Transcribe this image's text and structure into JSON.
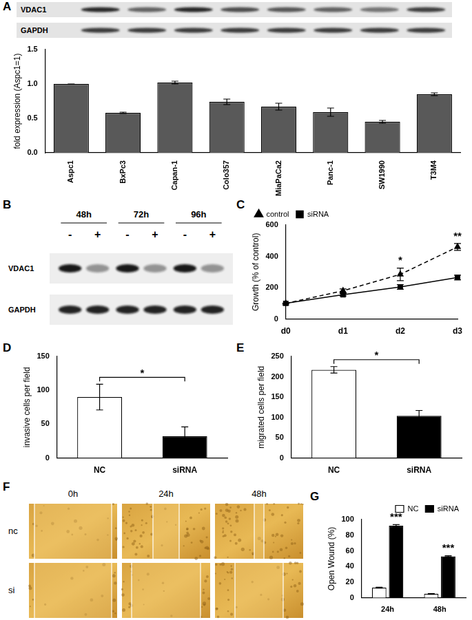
{
  "figure": {
    "panel_labels": [
      "A",
      "B",
      "C",
      "D",
      "E",
      "F",
      "G"
    ],
    "blot_A": {
      "rows": [
        "VDAC1",
        "GAPDH"
      ]
    },
    "blot_B": {
      "timepoints": [
        "48h",
        "72h",
        "96h"
      ],
      "treatment": [
        "-",
        "+"
      ],
      "rows": [
        "VDAC1",
        "GAPDH"
      ]
    },
    "wound_F": {
      "timepoints": [
        "0h",
        "24h",
        "48h"
      ],
      "groups": [
        "nc",
        "si"
      ]
    }
  },
  "chart_data": [
    {
      "type": "bar",
      "y_label": "fold expression (Aspc1=1)",
      "categories": [
        "Aspc1",
        "BxPc3",
        "Capan-1",
        "Colo357",
        "MiaPaCa2",
        "Panc-1",
        "SW1990",
        "T3M4"
      ],
      "values": [
        1.0,
        0.58,
        1.02,
        0.74,
        0.67,
        0.59,
        0.45,
        0.85
      ],
      "errors": [
        0,
        0.01,
        0.02,
        0.04,
        0.05,
        0.06,
        0.02,
        0.02
      ],
      "color": "#595959",
      "ylim": [
        0,
        1.5
      ],
      "yticks": [
        {
          "value": 0,
          "label": "0.0"
        },
        {
          "value": 0.5,
          "label": "0.5"
        },
        {
          "value": 1,
          "label": "1.0"
        },
        {
          "value": 1.5,
          "label": "1.5"
        }
      ],
      "grid": false
    },
    {
      "type": "line",
      "y_label": "Growth (% of control)",
      "categories": [
        "d0",
        "d1",
        "d2",
        "d3"
      ],
      "series": [
        {
          "name": "control",
          "color": "#000000",
          "marker": "triangle",
          "line_style": "dashed",
          "values": [
            100,
            180,
            285,
            460
          ],
          "errors": [
            0,
            12,
            40,
            22
          ]
        },
        {
          "name": "siRNA",
          "color": "#000000",
          "marker": "square",
          "line_style": "solid",
          "values": [
            100,
            155,
            205,
            265
          ],
          "errors": [
            0,
            8,
            15,
            15
          ]
        }
      ],
      "ylim": [
        0,
        600
      ],
      "yticks": [
        0,
        200,
        400,
        600
      ],
      "legend": "upper left",
      "grid": false,
      "annotations": [
        {
          "text": "*",
          "x": "d2"
        },
        {
          "text": "**",
          "x": "d3"
        }
      ]
    },
    {
      "type": "bar",
      "y_label": "invasive cells per field",
      "categories": [
        "NC",
        "siRNA"
      ],
      "values": [
        90,
        32
      ],
      "errors": [
        19,
        14
      ],
      "colors": [
        "#ffffff",
        "#000000"
      ],
      "ylim": [
        0,
        150
      ],
      "yticks": [
        0,
        50,
        100,
        150
      ],
      "grid": false,
      "annotations": [
        {
          "text": "*",
          "x": [
            "NC",
            "siRNA"
          ]
        }
      ]
    },
    {
      "type": "bar",
      "y_label": "migrated cells per field",
      "categories": [
        "NC",
        "siRNA"
      ],
      "values": [
        217,
        104
      ],
      "errors": [
        8,
        13
      ],
      "colors": [
        "#ffffff",
        "#000000"
      ],
      "ylim": [
        0,
        250
      ],
      "yticks": [
        0,
        50,
        100,
        150,
        200,
        250
      ],
      "grid": false,
      "annotations": [
        {
          "text": "*",
          "x": [
            "NC",
            "siRNA"
          ]
        }
      ]
    },
    {
      "type": "bar",
      "y_label": "Open Wound (%)",
      "categories": [
        "24h",
        "48h"
      ],
      "series": [
        {
          "name": "NC",
          "color": "#ffffff",
          "values": [
            13,
            5
          ],
          "errors": [
            0.6,
            0.5
          ]
        },
        {
          "name": "siRNA",
          "color": "#000000",
          "values": [
            92,
            53
          ],
          "errors": [
            1.5,
            0.8
          ]
        }
      ],
      "ylim": [
        0,
        100
      ],
      "yticks": [
        0,
        20,
        40,
        60,
        80,
        100
      ],
      "legend": "upper right",
      "grid": false,
      "annotations": [
        {
          "text": "***",
          "x": "24h",
          "series": "siRNA"
        },
        {
          "text": "***",
          "x": "48h",
          "series": "siRNA"
        }
      ]
    }
  ]
}
